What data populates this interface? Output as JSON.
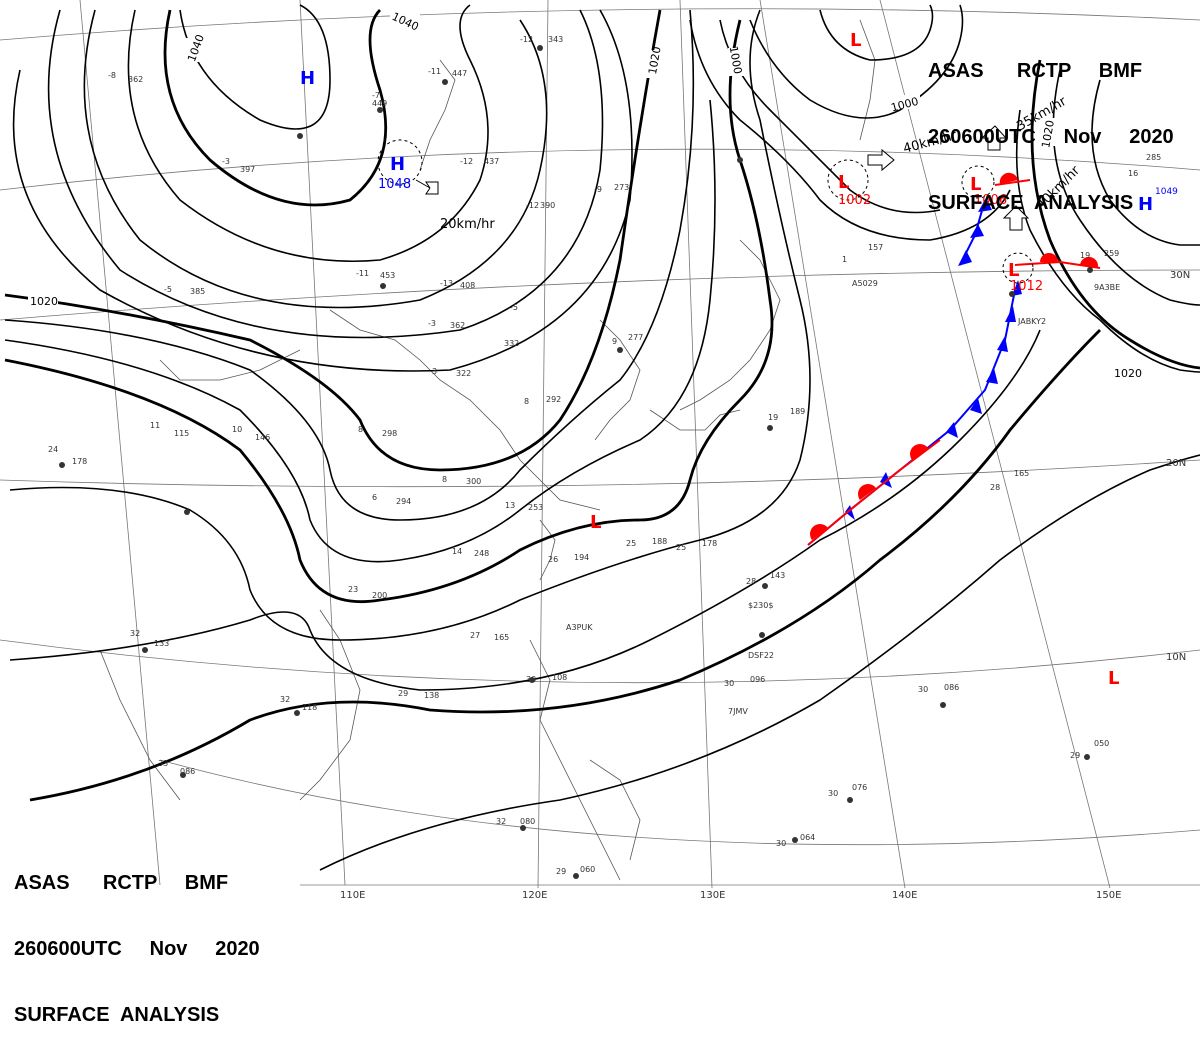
{
  "header_top": {
    "line1": "ASAS      RCTP     BMF",
    "line2": "260600UTC     Nov     2020",
    "line3": "SURFACE  ANALYSIS"
  },
  "header_bottom": {
    "line1": "ASAS      RCTP     BMF",
    "line2": "260600UTC     Nov     2020",
    "line3": "SURFACE  ANALYSIS"
  },
  "colors": {
    "high": "#0000ff",
    "low": "#ff0000",
    "cold_front": "#0000ff",
    "warm_front": "#ff0000",
    "isobar": "#000000"
  },
  "lon_labels": [
    "110E",
    "120E",
    "130E",
    "140E",
    "150E"
  ],
  "lat_labels": [
    "30N",
    "20N",
    "10N"
  ],
  "isobar_labels": [
    "1040",
    "1020",
    "1000",
    "1020",
    "1020",
    "1020"
  ],
  "pressure_centers": [
    {
      "type": "H",
      "value": ""
    },
    {
      "type": "H",
      "value": "1048"
    },
    {
      "type": "H",
      "value": "1049"
    },
    {
      "type": "L",
      "value": ""
    },
    {
      "type": "L",
      "value": "1002"
    },
    {
      "type": "L",
      "value": "1006"
    },
    {
      "type": "L",
      "value": "1012"
    },
    {
      "type": "L",
      "value": ""
    },
    {
      "type": "L",
      "value": ""
    }
  ],
  "motion_labels": [
    "20km/hr",
    "40km/hr",
    "35km/hr",
    "40km/hr"
  ],
  "stations": [
    {
      "t": "-12",
      "p": "343"
    },
    {
      "t": "-11",
      "p": "447"
    },
    {
      "t": "-7",
      "p": "449"
    },
    {
      "t": "-8",
      "p": "362"
    },
    {
      "t": "-3",
      "p": "397"
    },
    {
      "t": "-12",
      "p": "437"
    },
    {
      "t": "-12",
      "p": "390"
    },
    {
      "t": "-11",
      "p": "453"
    },
    {
      "t": "-13",
      "p": "408"
    },
    {
      "t": "-3",
      "p": "362"
    },
    {
      "t": "-5",
      "p": "332"
    },
    {
      "t": "3",
      "p": "322"
    },
    {
      "t": "8",
      "p": "292"
    },
    {
      "t": "8",
      "p": "298"
    },
    {
      "t": "8",
      "p": "300"
    },
    {
      "t": "6",
      "p": "294"
    },
    {
      "t": "10",
      "p": "146"
    },
    {
      "t": "11",
      "p": "115"
    },
    {
      "t": "24",
      "p": "178"
    },
    {
      "t": "13",
      "p": "253"
    },
    {
      "t": "14",
      "p": "248"
    },
    {
      "t": "23",
      "p": "200"
    },
    {
      "t": "25",
      "p": "188"
    },
    {
      "t": "26",
      "p": "194"
    },
    {
      "t": "25",
      "p": "178"
    },
    {
      "t": "27",
      "p": "165"
    },
    {
      "t": "28",
      "p": "143"
    },
    {
      "t": "30",
      "p": "108"
    },
    {
      "t": "29",
      "p": "138"
    },
    {
      "t": "32",
      "p": "118"
    },
    {
      "t": "33",
      "p": "086"
    },
    {
      "t": "32",
      "p": "133"
    },
    {
      "t": "30",
      "p": "096"
    },
    {
      "t": "30",
      "p": "086"
    },
    {
      "t": "29",
      "p": "050"
    },
    {
      "t": "30",
      "p": "076"
    },
    {
      "t": "30",
      "p": "064"
    },
    {
      "t": "32",
      "p": "080"
    },
    {
      "t": "29",
      "p": "060"
    },
    {
      "t": "28",
      "p": "165"
    },
    {
      "t": "19",
      "p": "189"
    },
    {
      "t": "9",
      "p": "277"
    },
    {
      "t": "16",
      "p": "285"
    },
    {
      "t": "19",
      "p": "259"
    },
    {
      "t": "1",
      "p": "157"
    },
    {
      "t": "-9",
      "p": "273"
    },
    {
      "t": "-5",
      "p": "385"
    }
  ],
  "ship_ids": [
    "A5029",
    "JABKY2",
    "9A3BE",
    "$230$",
    "DSF22",
    "7JMV",
    "A3PUK"
  ]
}
